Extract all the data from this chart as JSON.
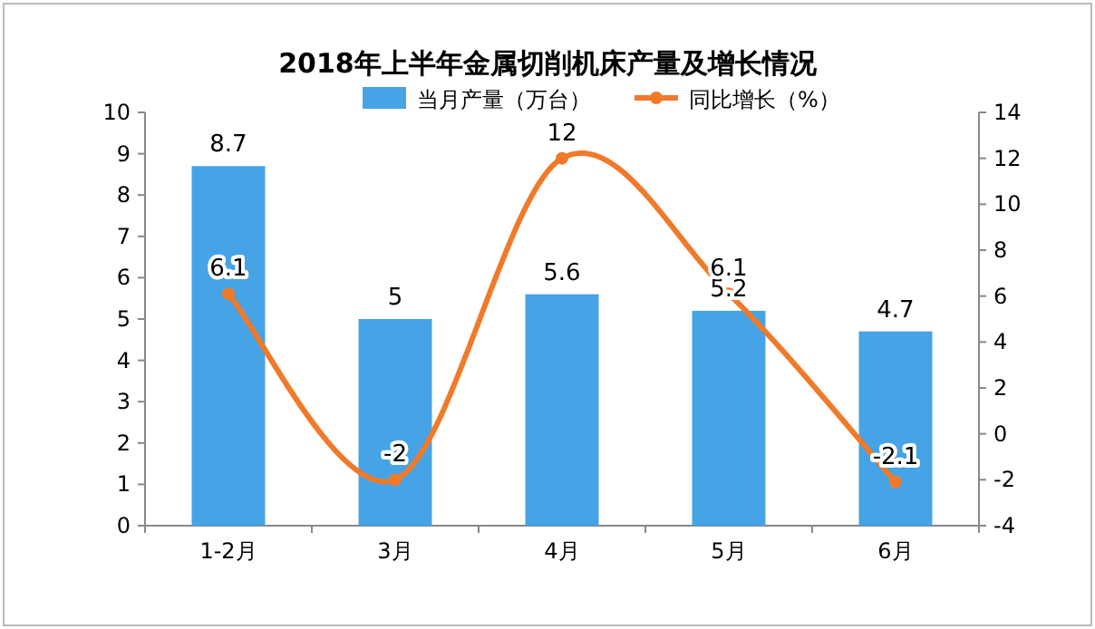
{
  "chart_data": {
    "type": "bar",
    "title": "2018年上半年金属切削机床产量及增长情况",
    "categories": [
      "1-2月",
      "3月",
      "4月",
      "5月",
      "6月"
    ],
    "series": [
      {
        "name": "当月产量（万台）",
        "color": "#45a3e6",
        "values": [
          8.7,
          5,
          5.6,
          5.2,
          4.7
        ]
      },
      {
        "name": "同比增长（%）",
        "type": "line",
        "axis": "y2",
        "color": "#f07a2a",
        "marker": "circle",
        "values": [
          6.1,
          -2,
          12,
          6.1,
          -2.1
        ]
      }
    ],
    "ylim": [
      0,
      10
    ],
    "yticks": [
      0,
      1,
      2,
      3,
      4,
      5,
      6,
      7,
      8,
      9,
      10
    ],
    "y2lim": [
      -4,
      14
    ],
    "y2ticks": [
      -4,
      -2,
      0,
      2,
      4,
      6,
      8,
      10,
      12,
      14
    ],
    "data_labels": true,
    "legend": "top",
    "grid": false
  }
}
